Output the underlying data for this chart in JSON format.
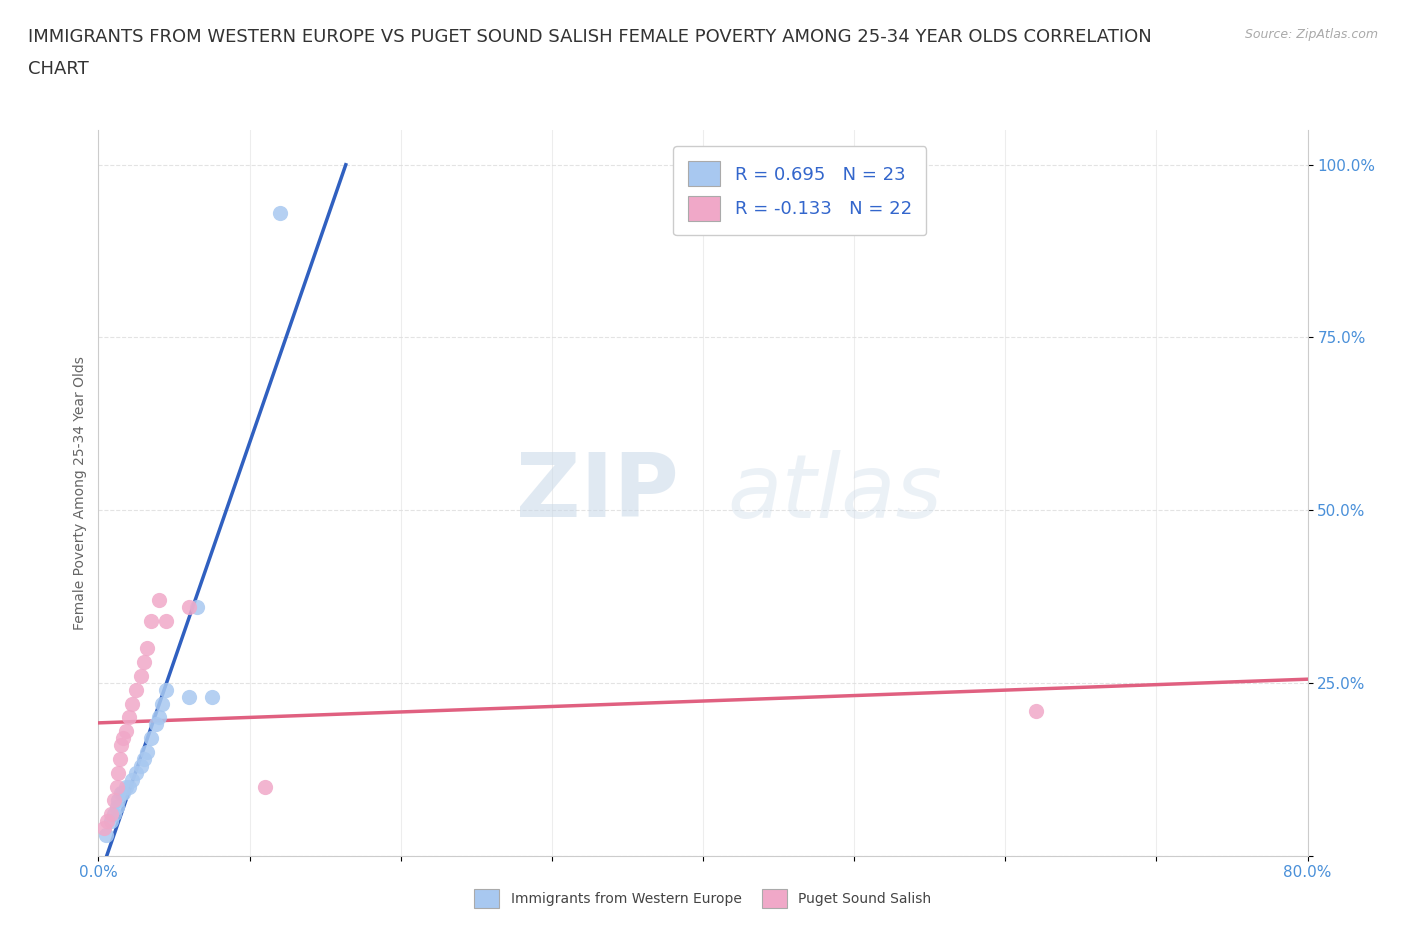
{
  "title": "IMMIGRANTS FROM WESTERN EUROPE VS PUGET SOUND SALISH FEMALE POVERTY AMONG 25-34 YEAR OLDS CORRELATION\nCHART",
  "source": "Source: ZipAtlas.com",
  "ylabel": "Female Poverty Among 25-34 Year Olds",
  "xlim": [
    0.0,
    0.8
  ],
  "ylim": [
    0.0,
    1.05
  ],
  "xticks": [
    0.0,
    0.1,
    0.2,
    0.3,
    0.4,
    0.5,
    0.6,
    0.7,
    0.8
  ],
  "yticks": [
    0.0,
    0.25,
    0.5,
    0.75,
    1.0
  ],
  "blue_color": "#a8c8f0",
  "pink_color": "#f0a8c8",
  "blue_line_color": "#3060c0",
  "pink_line_color": "#e06080",
  "watermark_zip": "ZIP",
  "watermark_atlas": "atlas",
  "r_blue": 0.695,
  "n_blue": 23,
  "r_pink": -0.133,
  "n_pink": 22,
  "blue_points_x": [
    0.005,
    0.008,
    0.01,
    0.012,
    0.013,
    0.015,
    0.016,
    0.018,
    0.02,
    0.022,
    0.025,
    0.028,
    0.03,
    0.032,
    0.035,
    0.038,
    0.04,
    0.042,
    0.045,
    0.06,
    0.065,
    0.075,
    0.12
  ],
  "blue_points_y": [
    0.03,
    0.05,
    0.06,
    0.07,
    0.08,
    0.09,
    0.09,
    0.1,
    0.1,
    0.11,
    0.12,
    0.13,
    0.14,
    0.15,
    0.17,
    0.19,
    0.2,
    0.22,
    0.24,
    0.23,
    0.36,
    0.23,
    0.93
  ],
  "pink_points_x": [
    0.004,
    0.006,
    0.008,
    0.01,
    0.012,
    0.013,
    0.014,
    0.015,
    0.016,
    0.018,
    0.02,
    0.022,
    0.025,
    0.028,
    0.03,
    0.032,
    0.035,
    0.04,
    0.045,
    0.06,
    0.11,
    0.62
  ],
  "pink_points_y": [
    0.04,
    0.05,
    0.06,
    0.08,
    0.1,
    0.12,
    0.14,
    0.16,
    0.17,
    0.18,
    0.2,
    0.22,
    0.24,
    0.26,
    0.28,
    0.3,
    0.34,
    0.37,
    0.34,
    0.36,
    0.1,
    0.21
  ],
  "background_color": "#ffffff",
  "grid_color": "#dddddd",
  "title_fontsize": 13,
  "axis_label_fontsize": 10,
  "tick_fontsize": 11,
  "legend_fontsize": 13,
  "tick_color": "#4a90d9",
  "legend_text_color": "#3366cc"
}
